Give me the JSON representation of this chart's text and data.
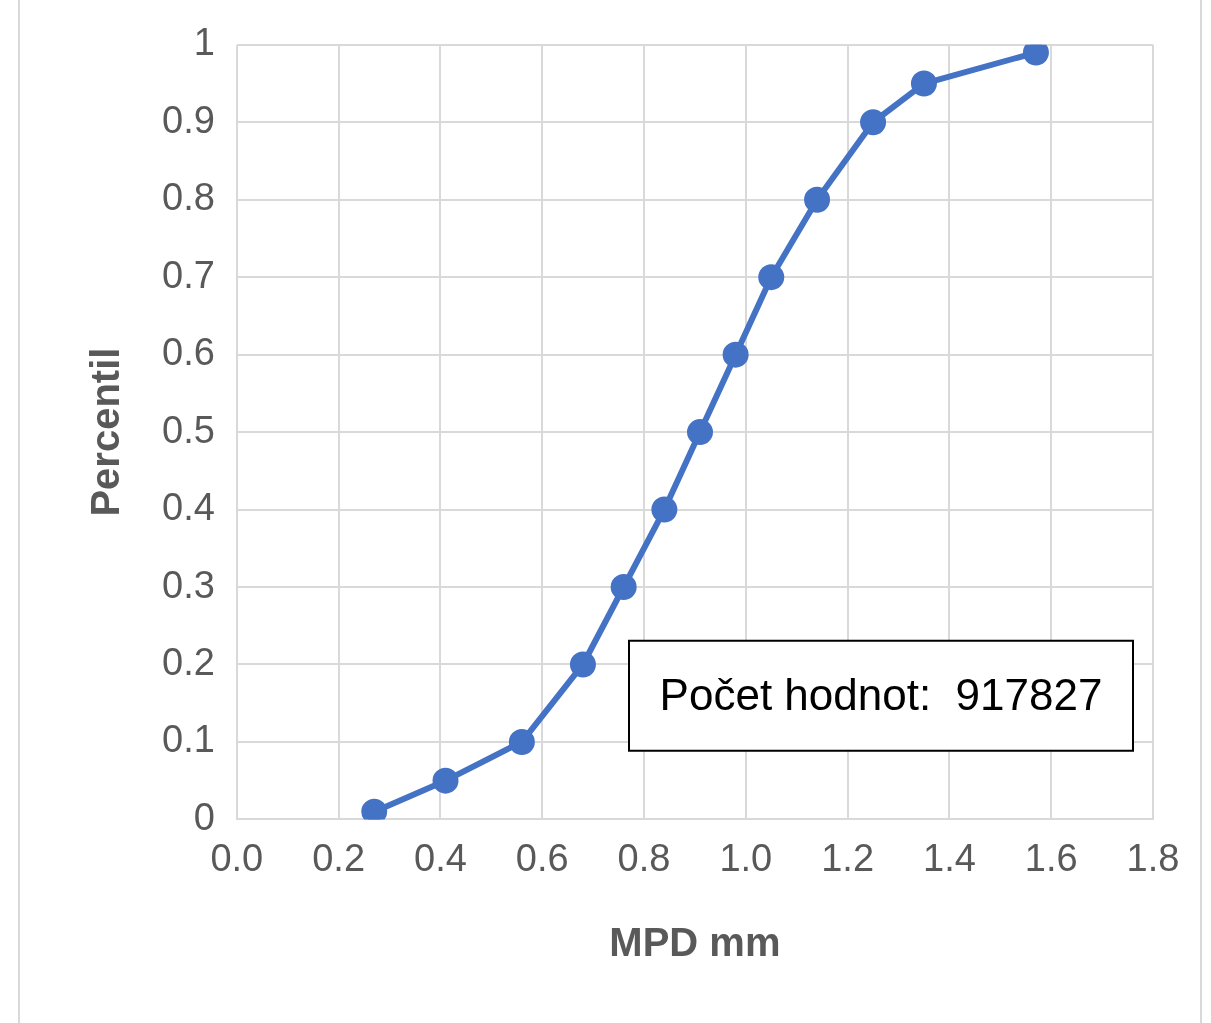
{
  "chart_data": {
    "type": "line",
    "xlabel": "MPD mm",
    "ylabel": "Percentil",
    "annotations": [
      "Počet hodnot:  917827"
    ],
    "series": [
      {
        "color": "#4472c4",
        "x": [
          0.27,
          0.41,
          0.56,
          0.68,
          0.76,
          0.84,
          0.91,
          0.98,
          1.05,
          1.14,
          1.25,
          1.35,
          1.57
        ],
        "values": [
          0.01,
          0.05,
          0.1,
          0.2,
          0.3,
          0.4,
          0.5,
          0.6,
          0.7,
          0.8,
          0.9,
          0.95,
          0.99
        ]
      }
    ],
    "xlim": [
      0,
      1.8
    ],
    "xticks": [
      {
        "value": 0,
        "label": "0.0"
      },
      0.2,
      0.4,
      0.6,
      0.8,
      {
        "value": 1,
        "label": "1.0"
      },
      1.2,
      1.4,
      1.6,
      1.8
    ],
    "ylim": [
      0,
      1
    ],
    "yticks": [
      0,
      0.1,
      0.2,
      0.3,
      0.4,
      0.5,
      0.6,
      0.7,
      0.8,
      0.9,
      1
    ],
    "grid": true,
    "legend": false,
    "marker": "circle",
    "line_style": "solid"
  }
}
